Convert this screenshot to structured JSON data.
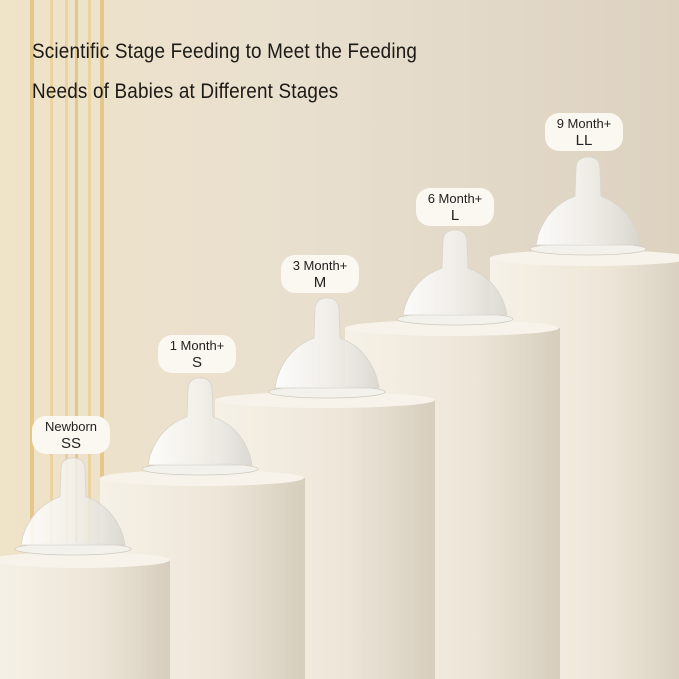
{
  "headline": {
    "line1": "Scientific Stage Feeding to Meet the Feeding",
    "line2": "Needs of Babies at Different Stages"
  },
  "stages": [
    {
      "age": "Newborn",
      "size": "SS"
    },
    {
      "age": "1 Month+",
      "size": "S"
    },
    {
      "age": "3 Month+",
      "size": "M"
    },
    {
      "age": "6 Month+",
      "size": "L"
    },
    {
      "age": "9 Month+",
      "size": "LL"
    }
  ],
  "colors": {
    "background": "#e6dccb",
    "pedestal": "#f1ebdf",
    "accent_stripes": "#e9c98a"
  }
}
